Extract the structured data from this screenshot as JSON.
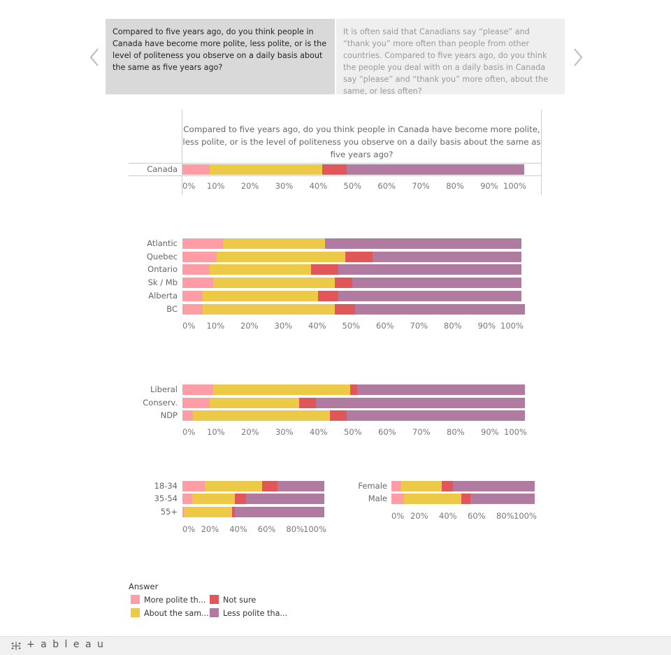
{
  "nav": {
    "prev_icon": "chevron-left-icon",
    "next_icon": "chevron-right-icon"
  },
  "cards": [
    {
      "text": "Compared to five years ago, do you think people in Canada have become more polite, less polite, or is the level of politeness you observe on a daily basis about the same as five years ago?",
      "active": true
    },
    {
      "text": "It is often said that Canadians say “please” and “thank you” more often than people from other countries. Compared to five years ago, do you think the people you deal with on a daily basis in Canada say “please” and “thank you” more often, about the same, or less often?",
      "active": false
    }
  ],
  "chart_title": "Compared to five years ago, do you think people in Canada have become more polite, less polite, or is the level of politeness you observe on a daily basis about the same as five years ago?",
  "legend": {
    "title": "Answer",
    "items": [
      {
        "label": "More polite th...",
        "color": "#ff9da7"
      },
      {
        "label": "Not sure",
        "color": "#e15759"
      },
      {
        "label": "About the sam...",
        "color": "#edc948"
      },
      {
        "label": "Less polite tha...",
        "color": "#b07aa1"
      }
    ]
  },
  "footer": {
    "logo": "+ a b l e a u",
    "logo_icon": "tableau-logo-icon"
  },
  "chart_data": [
    {
      "type": "bar",
      "stacked": true,
      "orientation": "horizontal",
      "categories": [
        "Canada"
      ],
      "series": [
        {
          "name": "More polite th...",
          "values": [
            8
          ]
        },
        {
          "name": "About the sam...",
          "values": [
            33
          ]
        },
        {
          "name": "Not sure",
          "values": [
            7
          ]
        },
        {
          "name": "Less polite tha...",
          "values": [
            52
          ]
        }
      ],
      "xticks": [
        "0%",
        "10%",
        "20%",
        "30%",
        "40%",
        "50%",
        "60%",
        "70%",
        "80%",
        "90%",
        "100%"
      ],
      "xlim": [
        0,
        100
      ]
    },
    {
      "type": "bar",
      "stacked": true,
      "orientation": "horizontal",
      "categories": [
        "Atlantic",
        "Quebec",
        "Ontario",
        "Sk / Mb",
        "Alberta",
        "BC"
      ],
      "series": [
        {
          "name": "More polite th...",
          "values": [
            12,
            10,
            8,
            9,
            6,
            6
          ]
        },
        {
          "name": "About the sam...",
          "values": [
            30,
            38,
            30,
            36,
            34,
            39
          ]
        },
        {
          "name": "Not sure",
          "values": [
            0,
            8,
            8,
            5,
            6,
            6
          ]
        },
        {
          "name": "Less polite tha...",
          "values": [
            58,
            44,
            54,
            50,
            54,
            50
          ]
        }
      ],
      "xticks": [
        "0%",
        "10%",
        "20%",
        "30%",
        "40%",
        "50%",
        "60%",
        "70%",
        "80%",
        "90%",
        "100%"
      ],
      "xlim": [
        0,
        100
      ]
    },
    {
      "type": "bar",
      "stacked": true,
      "orientation": "horizontal",
      "categories": [
        "Liberal",
        "Conserv.",
        "NDP"
      ],
      "series": [
        {
          "name": "More polite th...",
          "values": [
            9,
            8,
            3
          ]
        },
        {
          "name": "About the sam...",
          "values": [
            40,
            26,
            40
          ]
        },
        {
          "name": "Not sure",
          "values": [
            2,
            5,
            5
          ]
        },
        {
          "name": "Less polite tha...",
          "values": [
            49,
            61,
            52
          ]
        }
      ],
      "xticks": [
        "0%",
        "10%",
        "20%",
        "30%",
        "40%",
        "50%",
        "60%",
        "70%",
        "80%",
        "90%",
        "100%"
      ],
      "xlim": [
        0,
        100
      ]
    },
    {
      "type": "bar",
      "stacked": true,
      "orientation": "horizontal",
      "categories": [
        "18-34",
        "35-54",
        "55+"
      ],
      "series": [
        {
          "name": "More polite th...",
          "values": [
            16,
            7,
            1
          ]
        },
        {
          "name": "About the sam...",
          "values": [
            40,
            30,
            34
          ]
        },
        {
          "name": "Not sure",
          "values": [
            11,
            8,
            2
          ]
        },
        {
          "name": "Less polite tha...",
          "values": [
            33,
            55,
            63
          ]
        }
      ],
      "xticks": [
        "0%",
        "20%",
        "40%",
        "60%",
        "80%",
        "100%"
      ],
      "xlim": [
        0,
        100
      ]
    },
    {
      "type": "bar",
      "stacked": true,
      "orientation": "horizontal",
      "categories": [
        "Female",
        "Male"
      ],
      "series": [
        {
          "name": "More polite th...",
          "values": [
            7,
            9
          ]
        },
        {
          "name": "About the sam...",
          "values": [
            28,
            40
          ]
        },
        {
          "name": "Not sure",
          "values": [
            8,
            6
          ]
        },
        {
          "name": "Less polite tha...",
          "values": [
            57,
            45
          ]
        }
      ],
      "xticks": [
        "0%",
        "20%",
        "40%",
        "60%",
        "80%",
        "100%"
      ],
      "xlim": [
        0,
        100
      ]
    }
  ]
}
